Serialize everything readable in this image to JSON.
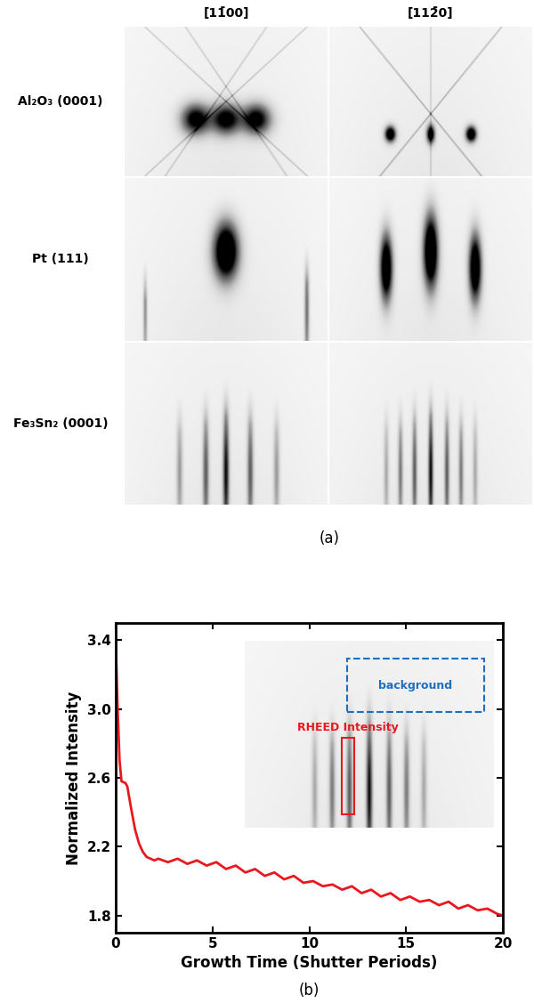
{
  "figure_a": {
    "caption": "(a)",
    "columns": [
      "[11̄00]",
      "[112̄0]"
    ],
    "rows": [
      "Al₂O₃ (0001)",
      "Pt (111)",
      "Fe₃Sn₂ (0001)"
    ]
  },
  "chart_data": {
    "type": "line",
    "caption": "(b)",
    "xlabel": "Growth Time (Shutter Periods)",
    "ylabel": "Normalized Intensity",
    "xlim": [
      0,
      20
    ],
    "xticks": [
      0,
      5,
      10,
      15,
      20
    ],
    "ylim": [
      1.7,
      3.5
    ],
    "yticks": [
      1.8,
      2.2,
      2.6,
      3.0,
      3.4
    ],
    "annotations": [
      "background",
      "RHEED Intensity"
    ],
    "series": [
      {
        "color": "#e8191e",
        "x": [
          0,
          0.1,
          0.2,
          0.3,
          0.5,
          0.6,
          0.8,
          1.0,
          1.2,
          1.4,
          1.6,
          1.8,
          2.0,
          2.2,
          2.7,
          3.2,
          3.7,
          4.2,
          4.7,
          5.2,
          5.7,
          6.2,
          6.7,
          7.2,
          7.7,
          8.2,
          8.7,
          9.2,
          9.7,
          10.2,
          10.7,
          11.2,
          11.7,
          12.2,
          12.7,
          13.2,
          13.7,
          14.2,
          14.7,
          15.2,
          15.7,
          16.2,
          16.7,
          17.2,
          17.7,
          18.2,
          18.7,
          19.2,
          19.7,
          20
        ],
        "values": [
          3.4,
          3.0,
          2.7,
          2.58,
          2.57,
          2.55,
          2.42,
          2.3,
          2.22,
          2.17,
          2.14,
          2.13,
          2.12,
          2.13,
          2.11,
          2.13,
          2.1,
          2.12,
          2.09,
          2.11,
          2.07,
          2.09,
          2.05,
          2.07,
          2.03,
          2.05,
          2.01,
          2.03,
          1.99,
          2.0,
          1.97,
          1.98,
          1.95,
          1.97,
          1.93,
          1.95,
          1.91,
          1.93,
          1.89,
          1.91,
          1.88,
          1.89,
          1.86,
          1.88,
          1.84,
          1.86,
          1.83,
          1.84,
          1.81,
          1.8
        ]
      }
    ]
  }
}
